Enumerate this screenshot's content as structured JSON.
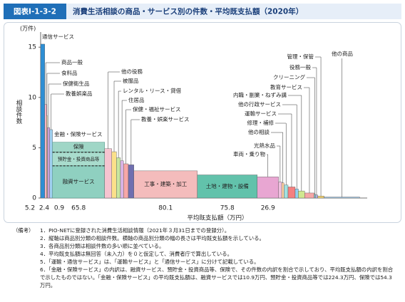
{
  "chart_data": {
    "type": "marimekko",
    "figure_label": "図表Ⅰ-1-3-2",
    "title": "消費生活相談の商品・サービス別の件数・平均既支払額（2020年）",
    "y_unit": "(万件)",
    "y_label": "相談件数",
    "x_label": "平均既支払額（万円）",
    "ylim": [
      0,
      16.5
    ],
    "yticks": [
      0,
      5,
      10,
      15
    ],
    "bars": [
      {
        "name": "通信サービス",
        "count": 15.3,
        "width": 5.2,
        "width_label": "5.2",
        "color": "#2d8fd5"
      },
      {
        "name": "商品一般",
        "count": 9.3,
        "width": 2.4,
        "width_label": "2.4",
        "color": "#f7b4c4"
      },
      {
        "name": "食料品",
        "count": 8.2,
        "width": 0.9,
        "width_label": "0.9",
        "color": "#f5d77a"
      },
      {
        "name": "保健衛生品",
        "count": 7.0,
        "width": 3,
        "color": "#c9a0d8"
      },
      {
        "name": "教養娯楽品",
        "count": 6.8,
        "width": 3.5,
        "color": "#a0d0f0"
      },
      {
        "name": "金融・保険サービス",
        "width": 65.8,
        "width_label": "65.8",
        "segments": [
          {
            "name": "融資サービス",
            "count": 3.2,
            "color": "#8fd0c0"
          },
          {
            "name": "預貯金・投資商品等",
            "count": 1.35,
            "color": "#a9dccd"
          },
          {
            "name": "保険",
            "count": 1.0,
            "color": "#9fd6c6"
          }
        ]
      },
      {
        "name": "他の役務",
        "count": 4.9,
        "width": 9,
        "color": "#f6c4d0"
      },
      {
        "name": "被服品",
        "count": 4.6,
        "width": 6,
        "color": "#fbe08a"
      },
      {
        "name": "レンタル・リース・貸借",
        "count": 4.0,
        "width": 5,
        "color": "#c8e6a0"
      },
      {
        "name": "住居品",
        "count": 3.7,
        "width": 4,
        "color": "#d9b3e6"
      },
      {
        "name": "保健・福祉サービス",
        "count": 3.4,
        "width": 6,
        "color": "#f7a8a8"
      },
      {
        "name": "教養・娯楽サービス",
        "count": 3.3,
        "width": 7,
        "color": "#6f6fb0"
      },
      {
        "name": "工事・建築・加工",
        "count": 2.7,
        "width": 80.1,
        "width_label": "80.1",
        "color": "#f4bcbc"
      },
      {
        "name": "土地・建物・設備",
        "count": 2.3,
        "width": 75.8,
        "width_label": "75.8",
        "color": "#62c2ab"
      },
      {
        "name": "車両・乗り物",
        "count": 2.1,
        "width": 26.9,
        "width_label": "26.9",
        "color": "#e8a6d2"
      },
      {
        "name": "光熱水品",
        "count": 1.6,
        "width": 4,
        "color": "#f0c0e0"
      },
      {
        "name": "他の相談",
        "count": 1.5,
        "width": 3,
        "color": "#ffd0a0"
      },
      {
        "name": "修理・補修",
        "count": 1.3,
        "width": 5,
        "color": "#a0e0e0"
      },
      {
        "name": "運輸サービス",
        "count": 1.1,
        "width": 9,
        "color": "#f48080"
      },
      {
        "name": "他の行政サービス",
        "count": 0.9,
        "width": 4,
        "color": "#8fd0f0"
      },
      {
        "name": "内職・副業・ねずみ講",
        "count": 0.7,
        "width": 8,
        "color": "#d0e890"
      },
      {
        "name": "教育サービス",
        "count": 0.5,
        "width": 12,
        "color": "#f4a6a6"
      },
      {
        "name": "クリーニング",
        "count": 0.4,
        "width": 1.5,
        "color": "#70c8c8"
      },
      {
        "name": "役務一般",
        "count": 0.3,
        "width": 3,
        "color": "#b0b0e0"
      },
      {
        "name": "管理・保管",
        "count": 0.2,
        "width": 8,
        "color": "#f0d070"
      },
      {
        "name": "他の商品",
        "count": 0.1,
        "width": 45,
        "color": "#a0c8e8"
      }
    ]
  },
  "notes": {
    "head": "（備考）",
    "items": [
      "1．PIO-NETに登録された消費生活相談情報（2021年３月31日までの登録分）。",
      "2．縦軸は商品別分類の相談件数。横軸の商品別分類の幅の長さは平均既支払額を示している。",
      "3．各商品別分類は相談件数の多い順に並べている。",
      "4．平均既支払額は無回答（未入力）を０と仮定して、消費者庁で算出している。",
      "5．「運輸・通信サービス」は、「運輸サービス」と「通信サービス」に分けて記載している。",
      "6．「金融・保険サービス」の内訳は、融資サービス、預貯金・投資商品等、保険で、その件数の内訳を割合で示しており、平均既支払額の内訳を割合で示したものではない。「金融・保険サービス」の平均既支払額は、融資サービスでは10.9万円、預貯金・投資商品等では224.3万円、保険では54.3万円。"
    ]
  }
}
